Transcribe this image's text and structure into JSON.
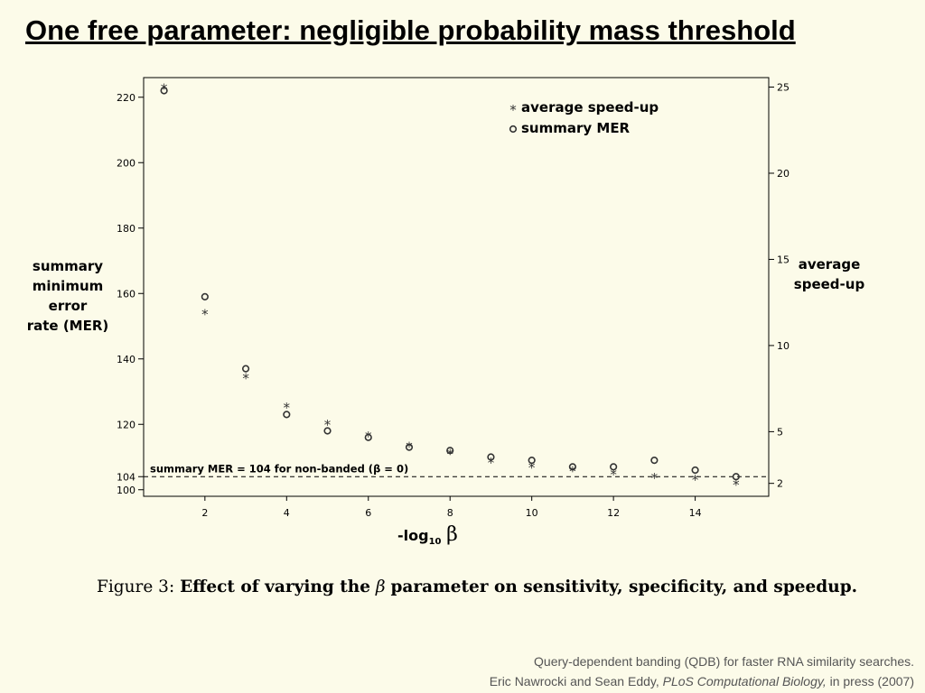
{
  "slide": {
    "title": "One free parameter: negligible probability mass threshold"
  },
  "caption": {
    "prefix": "Figure 3:",
    "text_before": "Effect of varying the",
    "symbol": "β",
    "text_after": "parameter on sensitivity, specificity, and speedup."
  },
  "footer": {
    "line1": "Query-dependent banding (QDB) for faster RNA similarity searches.",
    "line2_authors": "Eric Nawrocki and Sean Eddy,",
    "line2_journal": "PLoS Computational Biology,",
    "line2_status": "in press (2007)"
  },
  "chart_data": {
    "type": "scatter",
    "xlabel_main": "-log",
    "xlabel_sub": "10",
    "xlabel_symbol": "β",
    "ylabel_left": [
      "summary",
      "minimum",
      "error",
      "rate (MER)"
    ],
    "ylabel_right": [
      "average",
      "speed-up"
    ],
    "xlim": [
      0.5,
      15.8
    ],
    "ylim_left": [
      98,
      226
    ],
    "ylim_right": [
      1.25,
      25.55
    ],
    "x_ticks": [
      2,
      4,
      6,
      8,
      10,
      12,
      14
    ],
    "y_left_ticks": [
      100,
      104,
      120,
      140,
      160,
      180,
      200,
      220
    ],
    "y_right_ticks": [
      2,
      5,
      10,
      15,
      20,
      25
    ],
    "legend": {
      "position": "top-right",
      "entries": [
        {
          "marker": "*",
          "label": "average speed-up"
        },
        {
          "marker": "o",
          "label": "summary MER"
        }
      ]
    },
    "series": [
      {
        "name": "summary MER",
        "axis": "left",
        "marker": "o",
        "x": [
          1,
          2,
          3,
          4,
          5,
          6,
          7,
          8,
          9,
          10,
          11,
          12,
          13,
          14,
          15
        ],
        "values": [
          222,
          159,
          137,
          123,
          118,
          116,
          113,
          112,
          110,
          109,
          107,
          107,
          109,
          106,
          104
        ]
      },
      {
        "name": "average speed-up",
        "axis": "right",
        "marker": "*",
        "x": [
          1,
          2,
          3,
          4,
          5,
          6,
          7,
          8,
          9,
          10,
          11,
          12,
          13,
          14,
          15
        ],
        "values": [
          25,
          11.9,
          8.2,
          6.5,
          5.5,
          4.8,
          4.2,
          3.8,
          3.3,
          3.0,
          2.8,
          2.6,
          2.4,
          2.3,
          2.0
        ]
      }
    ],
    "baseline": {
      "value": 104,
      "axis": "left",
      "label": "summary MER = 104 for non-banded (β = 0)",
      "style": "dashed"
    }
  }
}
